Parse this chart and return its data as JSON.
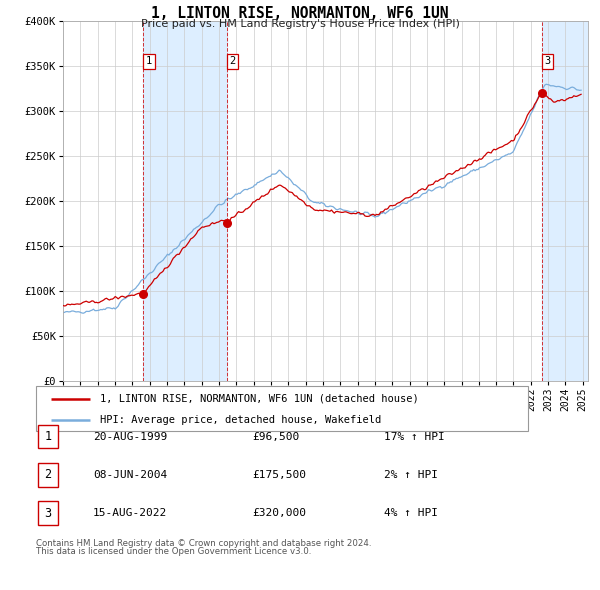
{
  "title": "1, LINTON RISE, NORMANTON, WF6 1UN",
  "subtitle": "Price paid vs. HM Land Registry's House Price Index (HPI)",
  "legend_line1": "1, LINTON RISE, NORMANTON, WF6 1UN (detached house)",
  "legend_line2": "HPI: Average price, detached house, Wakefield",
  "red_color": "#cc0000",
  "blue_color": "#7aaddc",
  "shade_color": "#ddeeff",
  "transactions": [
    {
      "label": "1",
      "date": "20-AUG-1999",
      "price": 96500,
      "price_str": "£96,500",
      "pct": "17% ↑ HPI",
      "year": 1999.63
    },
    {
      "label": "2",
      "date": "08-JUN-2004",
      "price": 175500,
      "price_str": "£175,500",
      "pct": "2% ↑ HPI",
      "year": 2004.44
    },
    {
      "label": "3",
      "date": "15-AUG-2022",
      "price": 320000,
      "price_str": "£320,000",
      "pct": "4% ↑ HPI",
      "year": 2022.63
    }
  ],
  "footnote1": "Contains HM Land Registry data © Crown copyright and database right 2024.",
  "footnote2": "This data is licensed under the Open Government Licence v3.0.",
  "ylim": [
    0,
    400000
  ],
  "xlim_start": 1995.0,
  "xlim_end": 2025.3,
  "yticks": [
    0,
    50000,
    100000,
    150000,
    200000,
    250000,
    300000,
    350000,
    400000
  ],
  "ytick_labels": [
    "£0",
    "£50K",
    "£100K",
    "£150K",
    "£200K",
    "£250K",
    "£300K",
    "£350K",
    "£400K"
  ]
}
